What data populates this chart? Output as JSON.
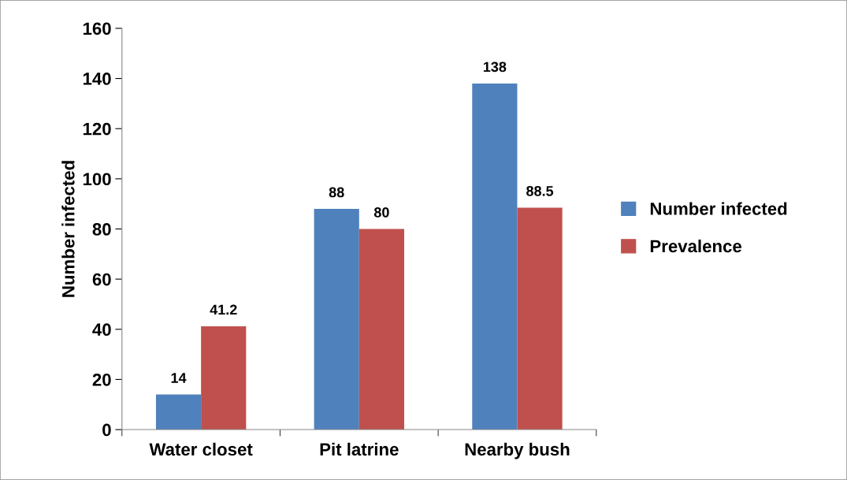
{
  "chart_data": {
    "type": "bar",
    "ylabel": "Number infected",
    "categories": [
      "Water closet",
      "Pit latrine",
      "Nearby bush"
    ],
    "series": [
      {
        "name": "Number infected",
        "color": "#4f81bd",
        "values": [
          14,
          88,
          138
        ]
      },
      {
        "name": "Prevalence",
        "color": "#c0504d",
        "values": [
          41.2,
          80,
          88.5
        ]
      }
    ],
    "value_labels": [
      [
        "14",
        "88",
        "138"
      ],
      [
        "41.2",
        "80",
        "88.5"
      ]
    ],
    "ylim": [
      0,
      160
    ],
    "yticks": [
      0,
      20,
      40,
      60,
      80,
      100,
      120,
      140,
      160
    ],
    "grid": false,
    "legend": "right"
  }
}
